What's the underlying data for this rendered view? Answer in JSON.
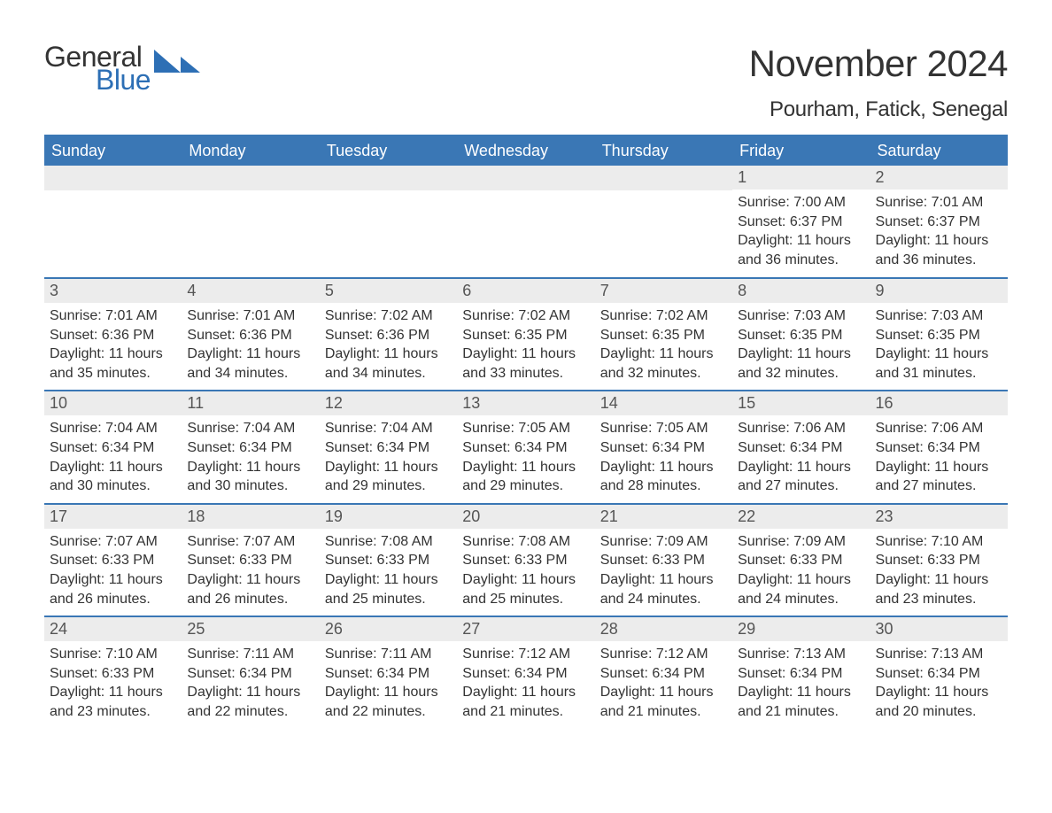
{
  "logo": {
    "text1": "General",
    "text2": "Blue",
    "tri_color": "#2d6fb5"
  },
  "title": {
    "month": "November 2024",
    "location": "Pourham, Fatick, Senegal"
  },
  "styling": {
    "header_bg": "#3a77b5",
    "header_text": "#ffffff",
    "daynum_bg": "#ececec",
    "rule_color": "#3a77b5",
    "body_text": "#333333",
    "title_fontsize": 42,
    "location_fontsize": 24,
    "header_fontsize": 18,
    "daynum_fontsize": 18,
    "body_fontsize": 16
  },
  "days_of_week": [
    "Sunday",
    "Monday",
    "Tuesday",
    "Wednesday",
    "Thursday",
    "Friday",
    "Saturday"
  ],
  "labels": {
    "sunrise": "Sunrise: ",
    "sunset": "Sunset: ",
    "daylight": "Daylight: "
  },
  "weeks": [
    [
      {
        "blank": true
      },
      {
        "blank": true
      },
      {
        "blank": true
      },
      {
        "blank": true
      },
      {
        "blank": true
      },
      {
        "n": "1",
        "sunrise": "7:00 AM",
        "sunset": "6:37 PM",
        "daylight": "11 hours and 36 minutes."
      },
      {
        "n": "2",
        "sunrise": "7:01 AM",
        "sunset": "6:37 PM",
        "daylight": "11 hours and 36 minutes."
      }
    ],
    [
      {
        "n": "3",
        "sunrise": "7:01 AM",
        "sunset": "6:36 PM",
        "daylight": "11 hours and 35 minutes."
      },
      {
        "n": "4",
        "sunrise": "7:01 AM",
        "sunset": "6:36 PM",
        "daylight": "11 hours and 34 minutes."
      },
      {
        "n": "5",
        "sunrise": "7:02 AM",
        "sunset": "6:36 PM",
        "daylight": "11 hours and 34 minutes."
      },
      {
        "n": "6",
        "sunrise": "7:02 AM",
        "sunset": "6:35 PM",
        "daylight": "11 hours and 33 minutes."
      },
      {
        "n": "7",
        "sunrise": "7:02 AM",
        "sunset": "6:35 PM",
        "daylight": "11 hours and 32 minutes."
      },
      {
        "n": "8",
        "sunrise": "7:03 AM",
        "sunset": "6:35 PM",
        "daylight": "11 hours and 32 minutes."
      },
      {
        "n": "9",
        "sunrise": "7:03 AM",
        "sunset": "6:35 PM",
        "daylight": "11 hours and 31 minutes."
      }
    ],
    [
      {
        "n": "10",
        "sunrise": "7:04 AM",
        "sunset": "6:34 PM",
        "daylight": "11 hours and 30 minutes."
      },
      {
        "n": "11",
        "sunrise": "7:04 AM",
        "sunset": "6:34 PM",
        "daylight": "11 hours and 30 minutes."
      },
      {
        "n": "12",
        "sunrise": "7:04 AM",
        "sunset": "6:34 PM",
        "daylight": "11 hours and 29 minutes."
      },
      {
        "n": "13",
        "sunrise": "7:05 AM",
        "sunset": "6:34 PM",
        "daylight": "11 hours and 29 minutes."
      },
      {
        "n": "14",
        "sunrise": "7:05 AM",
        "sunset": "6:34 PM",
        "daylight": "11 hours and 28 minutes."
      },
      {
        "n": "15",
        "sunrise": "7:06 AM",
        "sunset": "6:34 PM",
        "daylight": "11 hours and 27 minutes."
      },
      {
        "n": "16",
        "sunrise": "7:06 AM",
        "sunset": "6:34 PM",
        "daylight": "11 hours and 27 minutes."
      }
    ],
    [
      {
        "n": "17",
        "sunrise": "7:07 AM",
        "sunset": "6:33 PM",
        "daylight": "11 hours and 26 minutes."
      },
      {
        "n": "18",
        "sunrise": "7:07 AM",
        "sunset": "6:33 PM",
        "daylight": "11 hours and 26 minutes."
      },
      {
        "n": "19",
        "sunrise": "7:08 AM",
        "sunset": "6:33 PM",
        "daylight": "11 hours and 25 minutes."
      },
      {
        "n": "20",
        "sunrise": "7:08 AM",
        "sunset": "6:33 PM",
        "daylight": "11 hours and 25 minutes."
      },
      {
        "n": "21",
        "sunrise": "7:09 AM",
        "sunset": "6:33 PM",
        "daylight": "11 hours and 24 minutes."
      },
      {
        "n": "22",
        "sunrise": "7:09 AM",
        "sunset": "6:33 PM",
        "daylight": "11 hours and 24 minutes."
      },
      {
        "n": "23",
        "sunrise": "7:10 AM",
        "sunset": "6:33 PM",
        "daylight": "11 hours and 23 minutes."
      }
    ],
    [
      {
        "n": "24",
        "sunrise": "7:10 AM",
        "sunset": "6:33 PM",
        "daylight": "11 hours and 23 minutes."
      },
      {
        "n": "25",
        "sunrise": "7:11 AM",
        "sunset": "6:34 PM",
        "daylight": "11 hours and 22 minutes."
      },
      {
        "n": "26",
        "sunrise": "7:11 AM",
        "sunset": "6:34 PM",
        "daylight": "11 hours and 22 minutes."
      },
      {
        "n": "27",
        "sunrise": "7:12 AM",
        "sunset": "6:34 PM",
        "daylight": "11 hours and 21 minutes."
      },
      {
        "n": "28",
        "sunrise": "7:12 AM",
        "sunset": "6:34 PM",
        "daylight": "11 hours and 21 minutes."
      },
      {
        "n": "29",
        "sunrise": "7:13 AM",
        "sunset": "6:34 PM",
        "daylight": "11 hours and 21 minutes."
      },
      {
        "n": "30",
        "sunrise": "7:13 AM",
        "sunset": "6:34 PM",
        "daylight": "11 hours and 20 minutes."
      }
    ]
  ]
}
